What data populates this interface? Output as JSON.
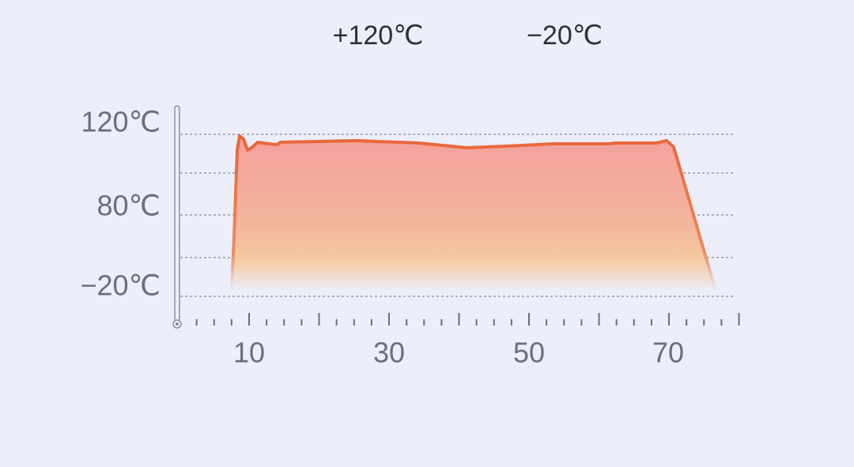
{
  "legend": {
    "items": [
      "+120℃",
      "−20℃"
    ]
  },
  "y_axis": {
    "labels": [
      "120℃",
      "80℃",
      "−20℃"
    ]
  },
  "x_axis": {
    "labels": [
      "10",
      "30",
      "50",
      "70"
    ]
  }
}
